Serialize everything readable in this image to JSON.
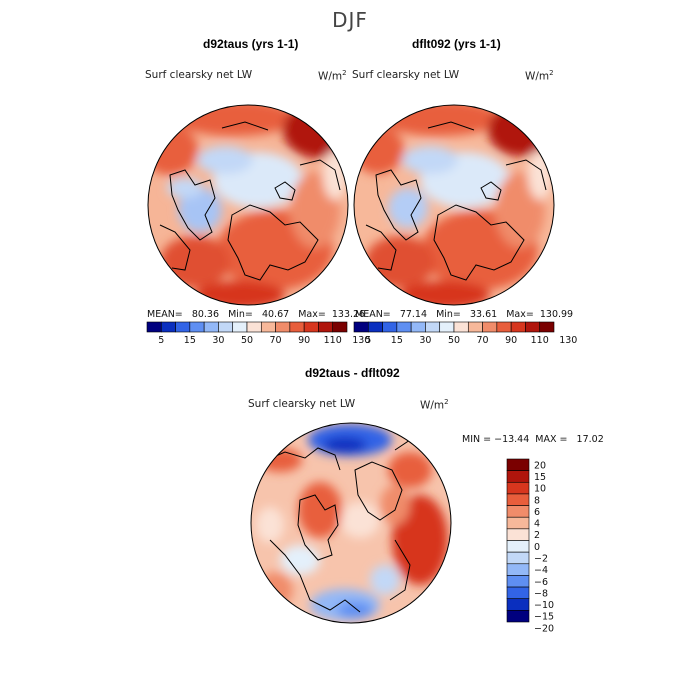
{
  "figure": {
    "title": "DJF"
  },
  "colors": {
    "scale_abs": [
      "#00007f",
      "#0a2fbf",
      "#3264e6",
      "#5f8ff2",
      "#93b8f7",
      "#c2d8f7",
      "#e4f0fb",
      "#fbe2d6",
      "#f7b89a",
      "#f08c6a",
      "#e85e3c",
      "#d7361e",
      "#b0150c",
      "#7a0000"
    ],
    "scale_diff": [
      "#7a0000",
      "#b0150c",
      "#d7361e",
      "#e85e3c",
      "#f08c6a",
      "#f7b89a",
      "#fbe2d6",
      "#e4f0fb",
      "#c2d8f7",
      "#93b8f7",
      "#5f8ff2",
      "#3264e6",
      "#0a2fbf",
      "#00007f"
    ],
    "coast": "#000000"
  },
  "chart_data": [
    {
      "type": "heatmap",
      "title": "d92taus (yrs 1-1)",
      "variable": "Surf clearsky net LW",
      "units": "W/m",
      "units_sup": "2",
      "stats": {
        "mean": "80.36",
        "min": "40.67",
        "max": "133.26"
      },
      "stats_text": "MEAN=   80.36   Min=   40.67   Max=  133.26",
      "colorbar_ticks": [
        "5",
        "15",
        "30",
        "50",
        "70",
        "90",
        "110",
        "130"
      ],
      "projection": "north-polar-stereographic"
    },
    {
      "type": "heatmap",
      "title": "dflt092 (yrs 1-1)",
      "variable": "Surf clearsky net LW",
      "units": "W/m",
      "units_sup": "2",
      "stats": {
        "mean": "77.14",
        "min": "33.61",
        "max": "130.99"
      },
      "stats_text": "MEAN=   77.14   Min=   33.61   Max=  130.99",
      "colorbar_ticks": [
        "5",
        "15",
        "30",
        "50",
        "70",
        "90",
        "110",
        "130"
      ],
      "projection": "north-polar-stereographic"
    },
    {
      "type": "heatmap",
      "title": "d92taus - dflt092",
      "variable": "Surf clearsky net LW",
      "units": "W/m",
      "units_sup": "2",
      "stats": {
        "min": "-13.44",
        "max": "17.02"
      },
      "stats_text": "MIN = −13.44  MAX =   17.02",
      "colorbar_ticks": [
        "20",
        "15",
        "10",
        "8",
        "6",
        "4",
        "2",
        "0",
        "−2",
        "−4",
        "−6",
        "−8",
        "−10",
        "−15",
        "−20"
      ],
      "projection": "north-polar-stereographic"
    }
  ]
}
